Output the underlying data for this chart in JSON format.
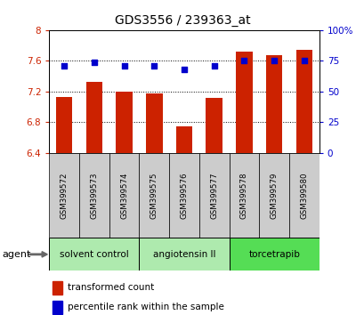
{
  "title": "GDS3556 / 239363_at",
  "samples": [
    "GSM399572",
    "GSM399573",
    "GSM399574",
    "GSM399575",
    "GSM399576",
    "GSM399577",
    "GSM399578",
    "GSM399579",
    "GSM399580"
  ],
  "bar_values": [
    7.13,
    7.32,
    7.2,
    7.17,
    6.74,
    7.12,
    7.72,
    7.67,
    7.74
  ],
  "percentile_values": [
    71,
    74,
    71,
    71,
    68,
    71,
    75,
    75,
    75
  ],
  "bar_color": "#cc2200",
  "dot_color": "#0000cc",
  "ylim_left": [
    6.4,
    8.0
  ],
  "ylim_right": [
    0,
    100
  ],
  "yticks_left": [
    6.4,
    6.8,
    7.2,
    7.6,
    8.0
  ],
  "yticks_right": [
    0,
    25,
    50,
    75,
    100
  ],
  "ytick_labels_left": [
    "6.4",
    "6.8",
    "7.2",
    "7.6",
    "8"
  ],
  "ytick_labels_right": [
    "0",
    "25",
    "50",
    "75",
    "100%"
  ],
  "groups": [
    {
      "label": "solvent control",
      "indices": [
        0,
        1,
        2
      ],
      "color": "#aeeaae"
    },
    {
      "label": "angiotensin II",
      "indices": [
        3,
        4,
        5
      ],
      "color": "#aeeaae"
    },
    {
      "label": "torcetrapib",
      "indices": [
        6,
        7,
        8
      ],
      "color": "#55dd55"
    }
  ],
  "agent_label": "agent",
  "legend_bar_label": "transformed count",
  "legend_dot_label": "percentile rank within the sample",
  "bar_width": 0.55,
  "plot_bg": "#ffffff",
  "sample_bg": "#cccccc"
}
